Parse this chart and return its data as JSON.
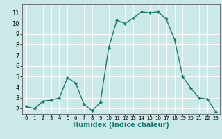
{
  "x": [
    0,
    1,
    2,
    3,
    4,
    5,
    6,
    7,
    8,
    9,
    10,
    11,
    12,
    13,
    14,
    15,
    16,
    17,
    18,
    19,
    20,
    21,
    22,
    23
  ],
  "y": [
    2.2,
    2.0,
    2.7,
    2.8,
    3.0,
    4.9,
    4.4,
    2.4,
    1.8,
    2.6,
    7.7,
    10.3,
    10.0,
    10.5,
    11.1,
    11.0,
    11.1,
    10.4,
    8.5,
    5.0,
    3.9,
    3.0,
    2.9,
    1.7
  ],
  "line_color": "#1a7a6e",
  "marker": "D",
  "marker_size": 2.0,
  "bg_color": "#cce9e9",
  "grid_color": "#ffffff",
  "xlabel": "Humidex (Indice chaleur)",
  "xlabel_fontsize": 7,
  "tick_fontsize": 6,
  "xlim": [
    -0.5,
    23.5
  ],
  "ylim": [
    1.5,
    11.8
  ],
  "yticks": [
    2,
    3,
    4,
    5,
    6,
    7,
    8,
    9,
    10,
    11
  ],
  "xticks": [
    0,
    1,
    2,
    3,
    4,
    5,
    6,
    7,
    8,
    9,
    10,
    11,
    12,
    13,
    14,
    15,
    16,
    17,
    18,
    19,
    20,
    21,
    22,
    23
  ],
  "line_width": 1.0
}
